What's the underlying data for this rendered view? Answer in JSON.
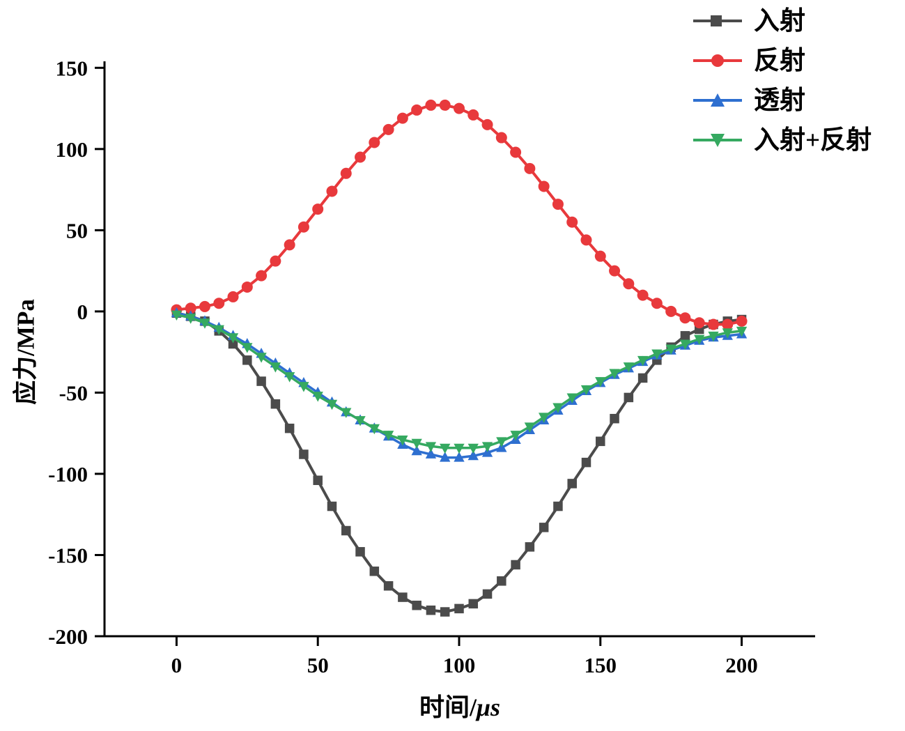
{
  "chart_data": {
    "type": "line",
    "title": "",
    "xlabel": "时间/μs",
    "xlabel_parts": [
      "时间/",
      "μs"
    ],
    "ylabel": "应力/MPa",
    "xlim": [
      -25.5,
      226
    ],
    "ylim": [
      -200,
      154
    ],
    "grid": false,
    "legend_position": "top-right",
    "xtick_values": [
      0,
      50,
      100,
      150,
      200
    ],
    "xtick_labels": [
      "0",
      "50",
      "100",
      "150",
      "200"
    ],
    "ytick_values": [
      150,
      100,
      50,
      0,
      -50,
      -100,
      -150,
      -200
    ],
    "ytick_labels": [
      "150",
      "100",
      "50",
      "0",
      "-50",
      "-100",
      "-150",
      "-200"
    ],
    "x": [
      0,
      5,
      10,
      15,
      20,
      25,
      30,
      35,
      40,
      45,
      50,
      55,
      60,
      65,
      70,
      75,
      80,
      85,
      90,
      95,
      100,
      105,
      110,
      115,
      120,
      125,
      130,
      135,
      140,
      145,
      150,
      155,
      160,
      165,
      170,
      175,
      180,
      185,
      190,
      195,
      200
    ],
    "series": [
      {
        "name": "入射",
        "color": "#4b4b4b",
        "marker": "square",
        "marker_size": 7.5,
        "line_width": 4,
        "values": [
          -1,
          -3,
          -6,
          -12,
          -20,
          -30,
          -43,
          -57,
          -72,
          -88,
          -104,
          -120,
          -135,
          -148,
          -160,
          -169,
          -176,
          -181,
          -184,
          -185,
          -183,
          -180,
          -174,
          -166,
          -156,
          -145,
          -133,
          -120,
          -106,
          -93,
          -80,
          -66,
          -53,
          -41,
          -30,
          -22,
          -15,
          -11,
          -8,
          -6,
          -5
        ]
      },
      {
        "name": "反射",
        "color": "#e8393c",
        "marker": "circle",
        "marker_size": 8,
        "line_width": 4,
        "values": [
          1,
          2,
          3,
          5,
          9,
          15,
          22,
          31,
          41,
          52,
          63,
          74,
          85,
          95,
          104,
          112,
          119,
          124,
          127,
          127,
          125,
          121,
          115,
          107,
          98,
          88,
          77,
          66,
          55,
          44,
          34,
          25,
          17,
          10,
          5,
          0,
          -4,
          -7,
          -8,
          -8,
          -6
        ]
      },
      {
        "name": "透射",
        "color": "#2e6fd0",
        "marker": "triangle-up",
        "marker_size": 8.5,
        "line_width": 3.5,
        "values": [
          -1,
          -3,
          -6,
          -10,
          -15,
          -20,
          -26,
          -32,
          -38,
          -44,
          -50,
          -56,
          -62,
          -67,
          -72,
          -77,
          -82,
          -86,
          -88,
          -90,
          -90,
          -89,
          -87,
          -84,
          -79,
          -73,
          -67,
          -61,
          -55,
          -49,
          -44,
          -39,
          -35,
          -31,
          -27,
          -24,
          -21,
          -18,
          -16,
          -15,
          -14
        ]
      },
      {
        "name": "入射+反射",
        "color": "#35a960",
        "marker": "triangle-down",
        "marker_size": 8.5,
        "line_width": 3.5,
        "values": [
          -2,
          -4,
          -7,
          -11,
          -16,
          -22,
          -28,
          -34,
          -40,
          -46,
          -52,
          -57,
          -62,
          -67,
          -72,
          -76,
          -79,
          -81,
          -83,
          -84,
          -84,
          -84,
          -83,
          -80,
          -76,
          -71,
          -65,
          -59,
          -53,
          -48,
          -43,
          -38,
          -34,
          -30,
          -26,
          -23,
          -20,
          -17,
          -15,
          -13,
          -12
        ]
      }
    ]
  }
}
